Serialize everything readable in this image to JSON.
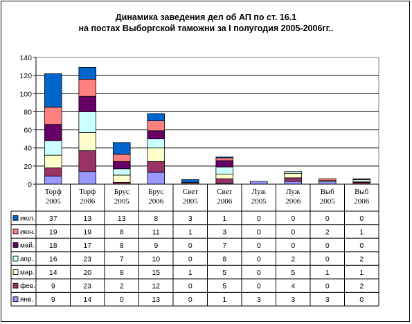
{
  "chart_data": {
    "type": "bar",
    "stacked": true,
    "title": "Динамика заведения дел об АП по ст. 16.1",
    "subtitle": "на постах Выборгской таможни за I полугодия 2005-2006гг..",
    "categories": [
      [
        "Торф",
        "2005"
      ],
      [
        "Торф",
        "2006"
      ],
      [
        "Брус",
        "2005"
      ],
      [
        "Брус",
        "2006"
      ],
      [
        "Свет",
        "2005"
      ],
      [
        "Свет",
        "2006"
      ],
      [
        "Луж",
        "2005"
      ],
      [
        "Луж",
        "2006"
      ],
      [
        "Выб",
        "2005"
      ],
      [
        "Выб",
        "2006"
      ]
    ],
    "ylim": [
      0,
      140
    ],
    "yticks": [
      0,
      20,
      40,
      60,
      80,
      100,
      120,
      140
    ],
    "grid": true,
    "legend": "data-table-left",
    "series": [
      {
        "name": "янв.",
        "color": "#9999ff",
        "values": [
          9,
          14,
          0,
          13,
          0,
          1,
          3,
          3,
          3,
          0
        ]
      },
      {
        "name": "фев.",
        "color": "#993366",
        "values": [
          9,
          23,
          2,
          12,
          0,
          5,
          0,
          4,
          0,
          2
        ]
      },
      {
        "name": "мар.",
        "color": "#ffffcc",
        "values": [
          14,
          20,
          8,
          15,
          1,
          5,
          0,
          5,
          1,
          1
        ]
      },
      {
        "name": "апр.",
        "color": "#ccffff",
        "values": [
          16,
          23,
          7,
          10,
          0,
          8,
          0,
          2,
          0,
          2
        ]
      },
      {
        "name": "май.",
        "color": "#660066",
        "values": [
          18,
          17,
          8,
          9,
          0,
          7,
          0,
          0,
          0,
          0
        ]
      },
      {
        "name": "июн.",
        "color": "#ff8080",
        "values": [
          19,
          19,
          8,
          11,
          1,
          3,
          0,
          0,
          2,
          1
        ]
      },
      {
        "name": "июл.",
        "color": "#0066cc",
        "values": [
          37,
          13,
          13,
          8,
          3,
          1,
          0,
          0,
          0,
          0
        ]
      }
    ]
  }
}
